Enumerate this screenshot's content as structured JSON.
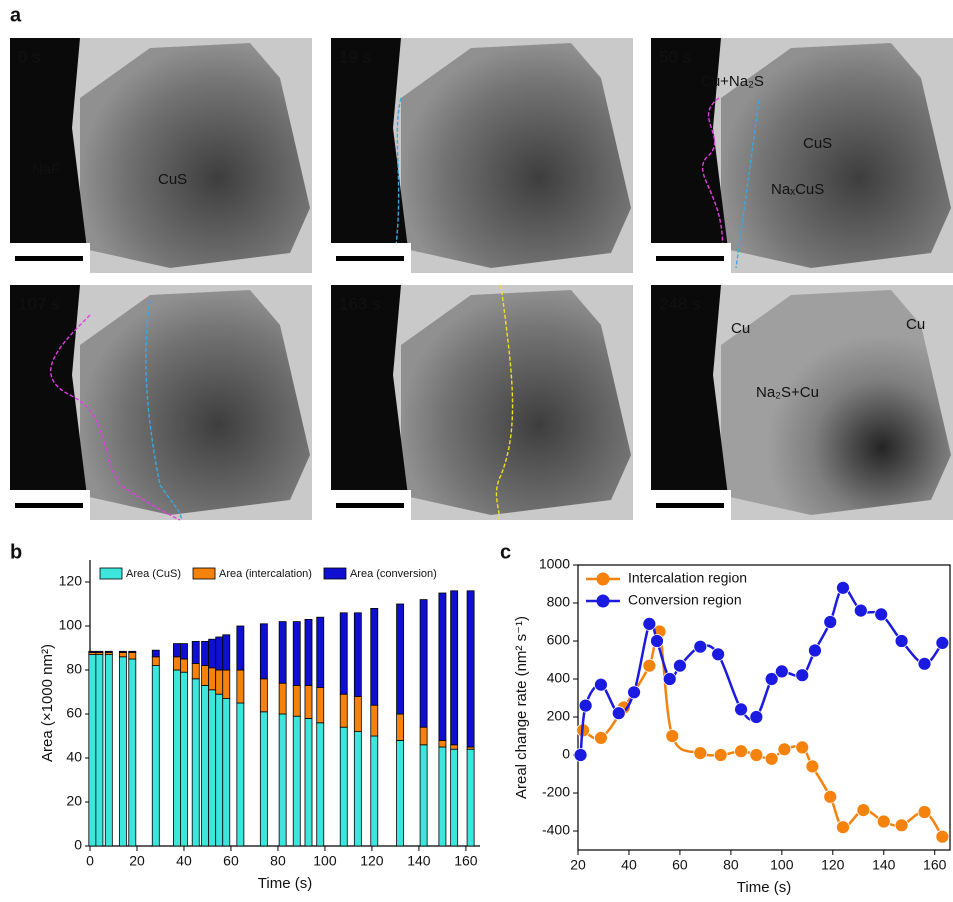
{
  "panel_a": {
    "label": "a",
    "images": [
      {
        "time": "0 s",
        "annotations": [
          "NaF",
          "CuS"
        ]
      },
      {
        "time": "19 s",
        "annotations": []
      },
      {
        "time": "50 s",
        "annotations": [
          "Cu+Na₂S",
          "CuS",
          "NaₓCuS"
        ]
      },
      {
        "time": "107 s",
        "annotations": []
      },
      {
        "time": "163 s",
        "annotations": []
      },
      {
        "time": "248 s",
        "annotations": [
          "Cu",
          "Cu",
          "Na₂S+Cu"
        ]
      }
    ]
  },
  "chart_data": [
    {
      "type": "stacked-bar",
      "panel_label": "b",
      "xlabel": "Time (s)",
      "ylabel": "Area (×1000 nm²)",
      "x": [
        1,
        4,
        8,
        14,
        18,
        28,
        37,
        40,
        45,
        49,
        52,
        55,
        58,
        64,
        74,
        82,
        88,
        93,
        98,
        108,
        114,
        121,
        132,
        142,
        150,
        155,
        162
      ],
      "series": [
        {
          "name": "Area (CuS)",
          "color": "#3de6dc",
          "values": [
            87,
            87,
            87,
            86,
            85,
            82,
            80,
            79,
            76,
            73,
            71,
            69,
            67,
            65,
            61,
            60,
            59,
            58,
            56,
            54,
            52,
            50,
            48,
            46,
            45,
            44,
            44
          ]
        },
        {
          "name": "Area (intercalation)",
          "color": "#f5820d",
          "values": [
            1,
            1,
            1,
            2,
            3,
            4,
            6,
            6,
            7,
            9,
            10,
            11,
            13,
            15,
            15,
            14,
            14,
            15,
            16,
            15,
            16,
            14,
            12,
            8,
            3,
            2,
            1
          ]
        },
        {
          "name": "Area (conversion)",
          "color": "#0f0fd2",
          "values": [
            0.5,
            0.5,
            0.5,
            0.5,
            0.5,
            3,
            6,
            7,
            10,
            11,
            13,
            15,
            16,
            20,
            25,
            28,
            29,
            30,
            32,
            37,
            38,
            44,
            50,
            58,
            67,
            70,
            71
          ]
        }
      ],
      "xlim": [
        0,
        166
      ],
      "xticks": [
        0,
        20,
        40,
        60,
        80,
        100,
        120,
        140,
        160
      ],
      "ylim": [
        0,
        130
      ],
      "yticks": [
        0,
        20,
        40,
        60,
        80,
        100,
        120
      ]
    },
    {
      "type": "line",
      "panel_label": "c",
      "xlabel": "Time (s)",
      "ylabel": "Areal change rate (nm² s⁻¹)",
      "series": [
        {
          "name": "Intercalation region",
          "color": "#f5820d",
          "x": [
            22,
            29,
            38,
            48,
            52,
            57,
            68,
            76,
            84,
            90,
            96,
            101,
            108,
            112,
            119,
            124,
            132,
            140,
            147,
            156,
            163
          ],
          "values": [
            130,
            90,
            250,
            470,
            650,
            100,
            10,
            0,
            20,
            0,
            -20,
            30,
            40,
            -60,
            -220,
            -380,
            -290,
            -350,
            -370,
            -300,
            -430
          ]
        },
        {
          "name": "Conversion region",
          "color": "#1a1ae0",
          "x": [
            21,
            23,
            29,
            36,
            42,
            48,
            51,
            56,
            60,
            68,
            75,
            84,
            90,
            96,
            100,
            108,
            113,
            119,
            124,
            131,
            139,
            147,
            156,
            163
          ],
          "values": [
            0,
            260,
            370,
            220,
            330,
            690,
            600,
            400,
            470,
            570,
            530,
            240,
            200,
            400,
            440,
            420,
            550,
            700,
            880,
            760,
            740,
            600,
            480,
            590
          ]
        }
      ],
      "xlim": [
        20,
        166
      ],
      "xticks": [
        20,
        40,
        60,
        80,
        100,
        120,
        140,
        160
      ],
      "ylim": [
        -500,
        1000
      ],
      "yticks": [
        -400,
        -200,
        0,
        200,
        400,
        600,
        800,
        1000
      ]
    }
  ]
}
